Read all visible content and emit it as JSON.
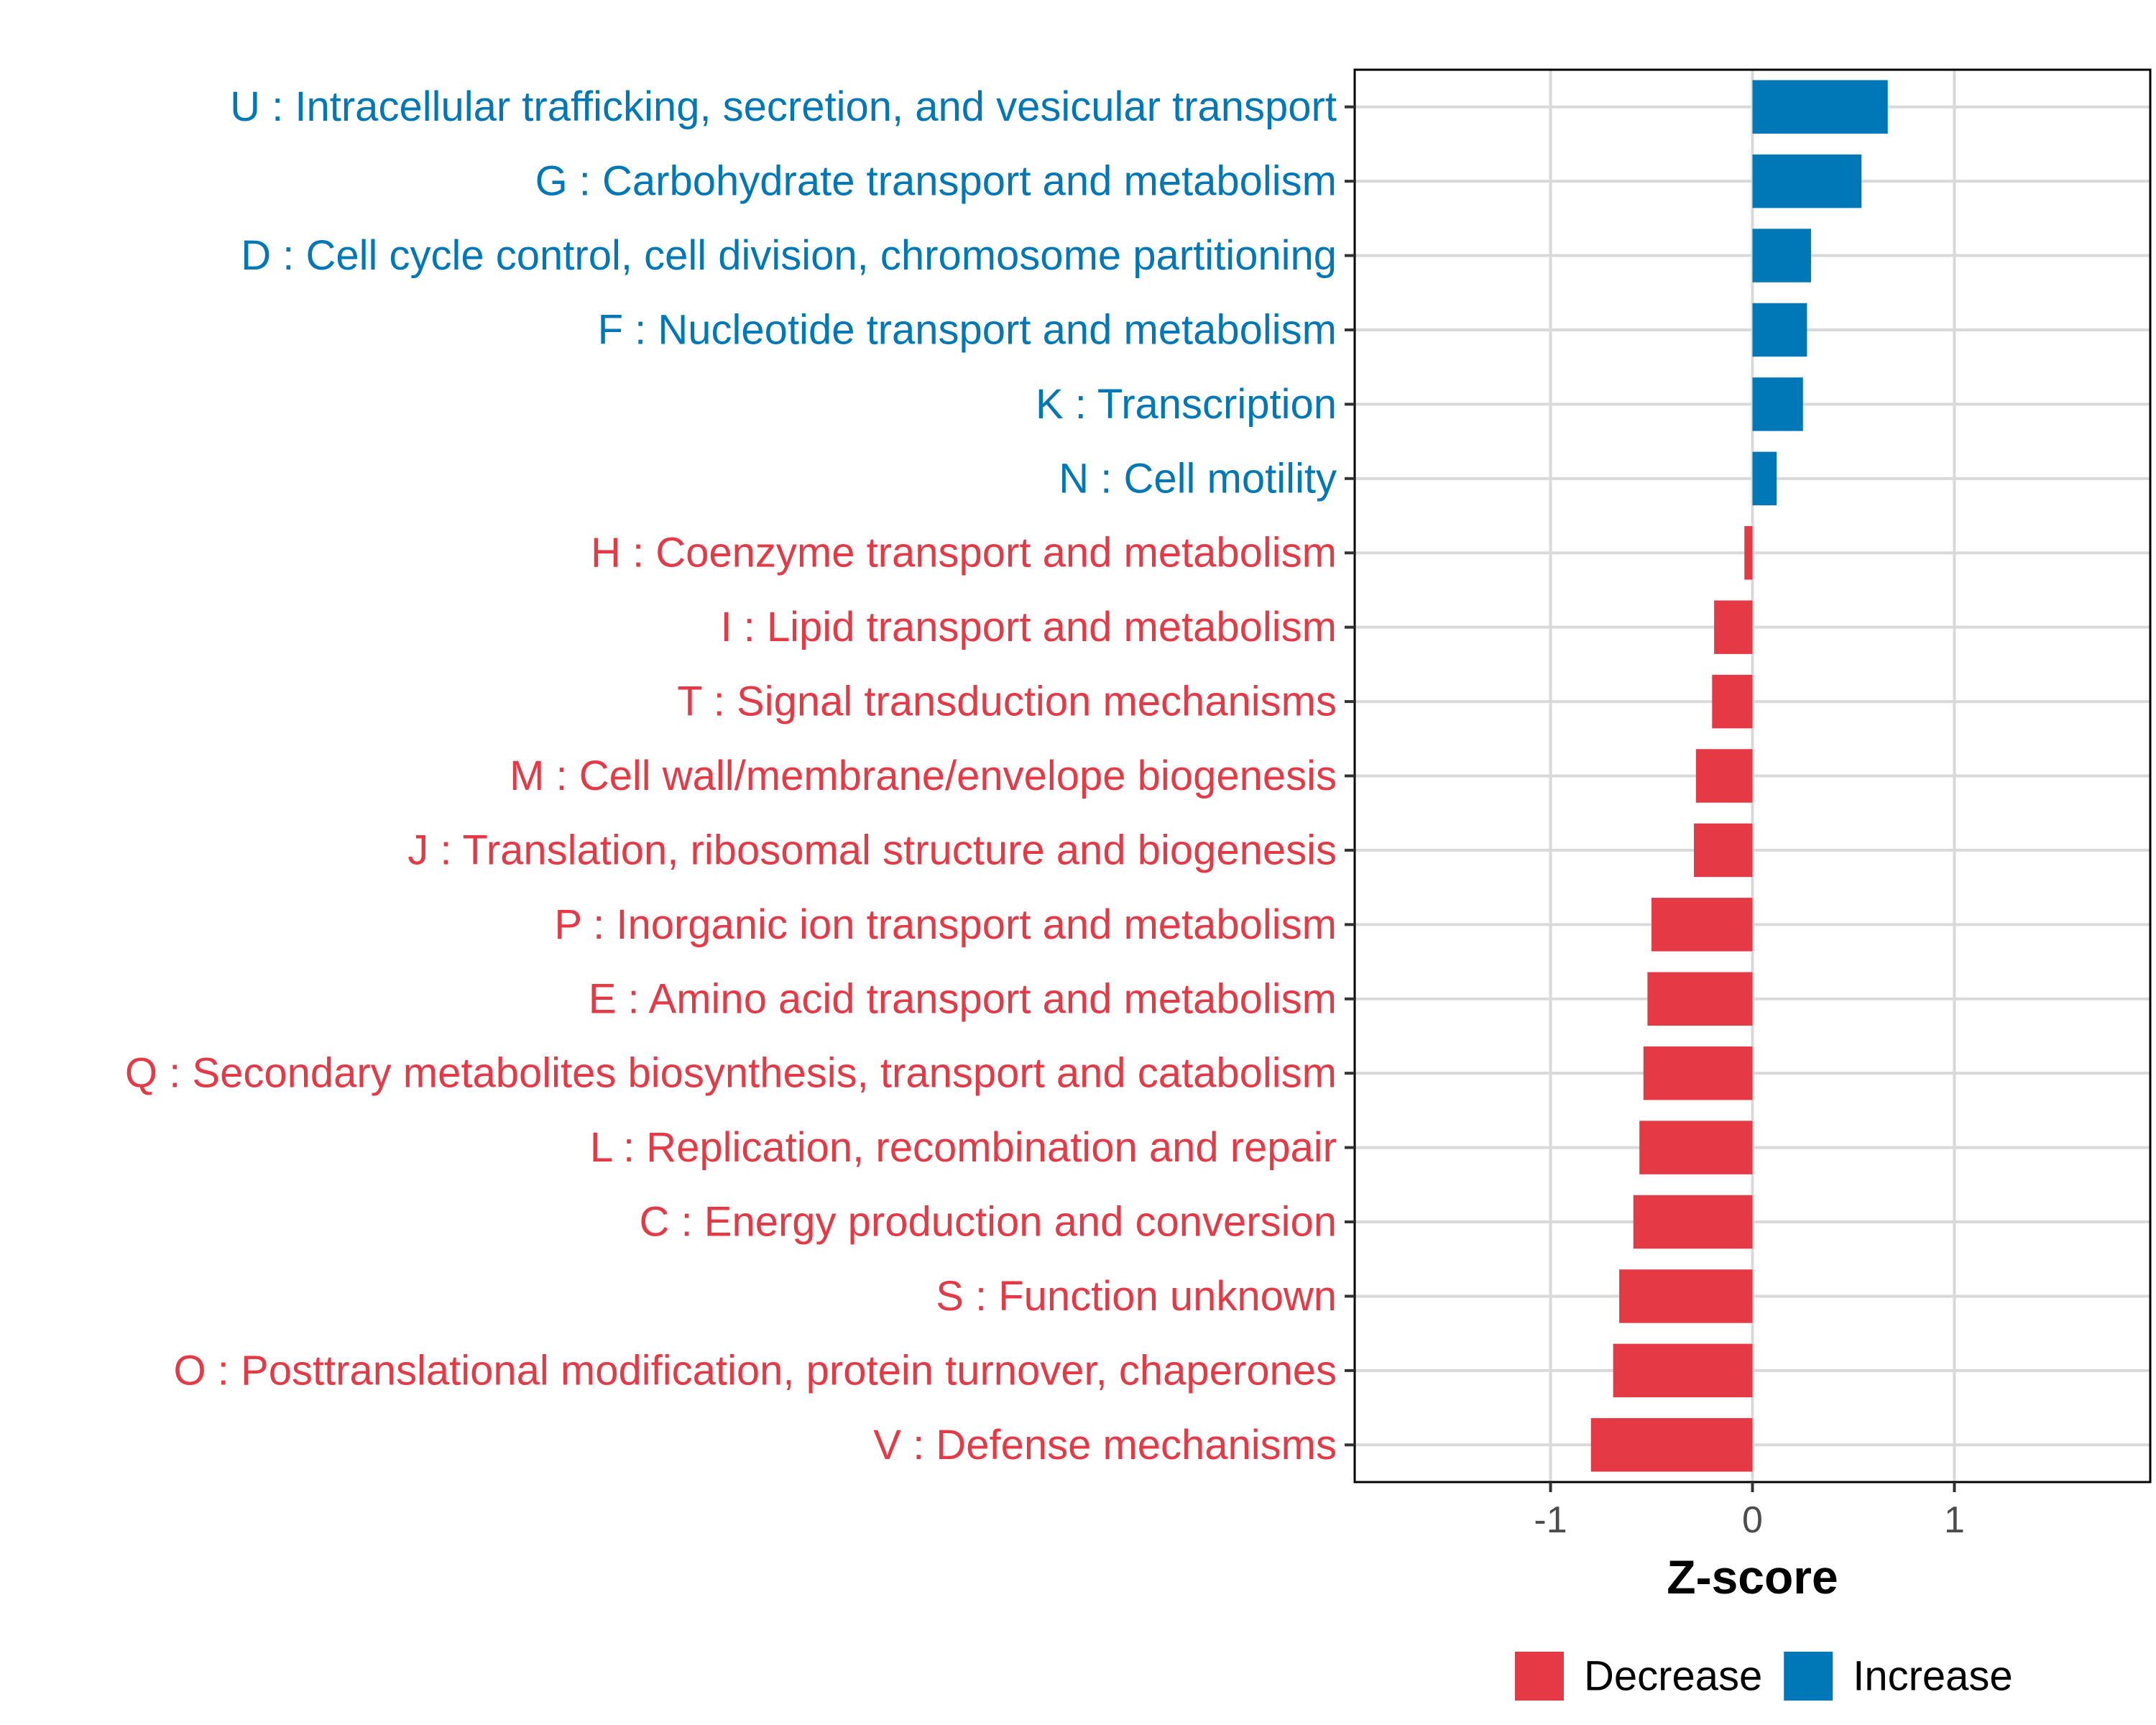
{
  "colors": {
    "increase": "#0077b6",
    "decrease": "#e63946",
    "grid": "#d9d9d9",
    "panel_border": "#000000",
    "tick_text": "#4d4d4d"
  },
  "chart_data": {
    "type": "bar",
    "orientation": "horizontal",
    "title": "",
    "xlabel": "Z-score",
    "ylabel": "",
    "xlim": [
      -1.97,
      1.97
    ],
    "xticks": [
      {
        "value": -1,
        "label": "-1"
      },
      {
        "value": 0,
        "label": "0"
      },
      {
        "value": 1,
        "label": "1"
      }
    ],
    "grid": true,
    "legend_position": "bottom-right",
    "legend": [
      {
        "key": "decrease",
        "label": "Decrease"
      },
      {
        "key": "increase",
        "label": "Increase"
      }
    ],
    "categories": [
      "U : Intracellular trafficking, secretion, and vesicular transport",
      "G : Carbohydrate transport and metabolism",
      "D : Cell cycle control, cell division, chromosome partitioning",
      "F : Nucleotide transport and metabolism",
      "K : Transcription",
      "N : Cell motility",
      "H : Coenzyme transport and metabolism",
      "I : Lipid transport and metabolism",
      "T : Signal transduction mechanisms",
      "M : Cell wall/membrane/envelope biogenesis",
      "J : Translation, ribosomal structure and biogenesis",
      "P : Inorganic ion transport and metabolism",
      "E : Amino acid transport and metabolism",
      "Q : Secondary metabolites biosynthesis, transport and catabolism",
      "L : Replication, recombination and repair",
      "C : Energy production and conversion",
      "S : Function unknown",
      "O : Posttranslational modification, protein turnover, chaperones",
      "V : Defense mechanisms"
    ],
    "values": [
      0.67,
      0.54,
      0.29,
      0.27,
      0.25,
      0.12,
      -0.04,
      -0.19,
      -0.2,
      -0.28,
      -0.29,
      -0.5,
      -0.52,
      -0.54,
      -0.56,
      -0.59,
      -0.66,
      -0.69,
      -0.8
    ],
    "direction": [
      "increase",
      "increase",
      "increase",
      "increase",
      "increase",
      "increase",
      "decrease",
      "decrease",
      "decrease",
      "decrease",
      "decrease",
      "decrease",
      "decrease",
      "decrease",
      "decrease",
      "decrease",
      "decrease",
      "decrease",
      "decrease"
    ]
  }
}
